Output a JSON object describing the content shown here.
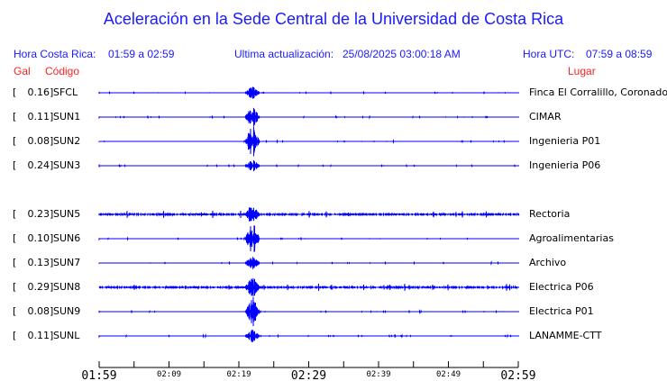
{
  "header": {
    "title": "Aceleración en la Sede Central de la Universidad de Costa Rica",
    "local_label": "Hora Costa Rica:",
    "local_range": "01:59 a 02:59",
    "update_label": "Ultima actualización:",
    "update_value": "25/08/2025 03:00:18 AM",
    "utc_label": "Hora UTC:",
    "utc_range": "07:59 a 08:59",
    "col_gal": "Gal",
    "col_code": "Código",
    "col_place": "Lugar"
  },
  "colors": {
    "trace": "#0000ff",
    "header": "#1a1aff",
    "columns": "#ff2020"
  },
  "chart_data": {
    "type": "line",
    "title": "Aceleración en la Sede Central de la Universidad de Costa Rica",
    "x_ticks": [
      {
        "label": "01:59",
        "major": true
      },
      {
        "label": "",
        "major": false
      },
      {
        "label": "02:09",
        "major": false
      },
      {
        "label": "",
        "major": false
      },
      {
        "label": "02:19",
        "major": false
      },
      {
        "label": "",
        "major": false
      },
      {
        "label": "02:29",
        "major": true
      },
      {
        "label": "",
        "major": false
      },
      {
        "label": "02:39",
        "major": false
      },
      {
        "label": "",
        "major": false
      },
      {
        "label": "02:49",
        "major": false
      },
      {
        "label": "",
        "major": false
      },
      {
        "label": "02:59",
        "major": true
      }
    ],
    "event_time": "02:21",
    "stations": [
      {
        "gal": "0.16",
        "code": "SFCL",
        "place": "Finca El Corralillo, Coronado",
        "noise": "low"
      },
      {
        "gal": "0.11",
        "code": "SUN1",
        "place": "CIMAR",
        "noise": "low"
      },
      {
        "gal": "0.08",
        "code": "SUN2",
        "place": "Ingenieria P01",
        "noise": "low"
      },
      {
        "gal": "0.24",
        "code": "SUN3",
        "place": "Ingenieria P06",
        "noise": "low"
      },
      {
        "gal": "0.23",
        "code": "SUN5",
        "place": "Rectoria",
        "noise": "high"
      },
      {
        "gal": "0.10",
        "code": "SUN6",
        "place": "Agroalimentarias",
        "noise": "low"
      },
      {
        "gal": "0.13",
        "code": "SUN7",
        "place": "Archivo",
        "noise": "low"
      },
      {
        "gal": "0.29",
        "code": "SUN8",
        "place": "Electrica P06",
        "noise": "high"
      },
      {
        "gal": "0.08",
        "code": "SUN9",
        "place": "Electrica P01",
        "noise": "low"
      },
      {
        "gal": "0.11",
        "code": "SUNL",
        "place": "LANAMME-CTT",
        "noise": "low"
      }
    ]
  }
}
